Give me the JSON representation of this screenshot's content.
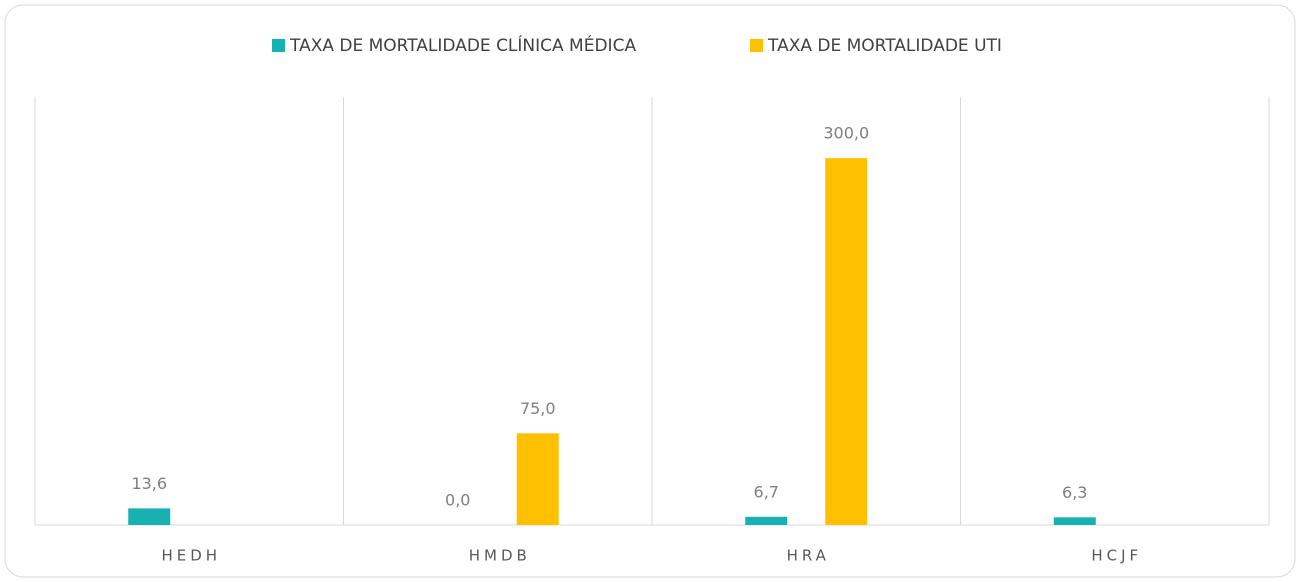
{
  "chart_data": {
    "type": "bar",
    "categories": [
      "HEDH",
      "HMDB",
      "HRA",
      "HCJF"
    ],
    "series": [
      {
        "name": "TAXA DE MORTALIDADE CLÍNICA MÉDICA",
        "color": "#17b1b1",
        "values": [
          13.6,
          0.0,
          6.7,
          6.3
        ],
        "value_labels": [
          "13,6",
          "0,0",
          "6,7",
          "6,3"
        ]
      },
      {
        "name": "TAXA DE MORTALIDADE UTI",
        "color": "#ffc000",
        "values": [
          null,
          75.0,
          300.0,
          null
        ],
        "value_labels": [
          null,
          "75,0",
          "300,0",
          null
        ]
      }
    ],
    "ylim": [
      0,
      350
    ]
  }
}
